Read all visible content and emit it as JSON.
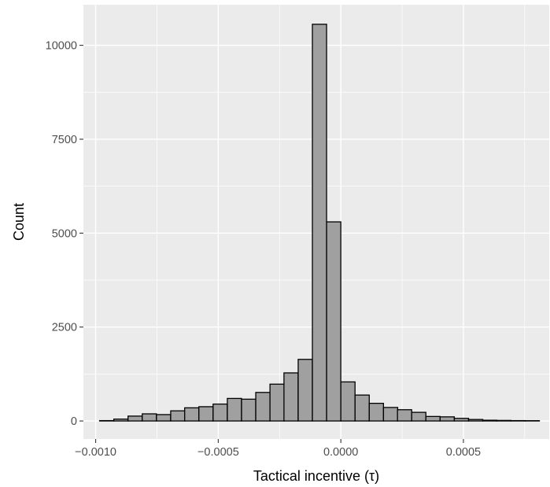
{
  "chart_data": {
    "type": "bar",
    "subtype": "histogram",
    "title": "",
    "xlabel": "Tactical incentive (τ)",
    "ylabel": "Count",
    "xlim": [
      -0.00105,
      0.00085
    ],
    "ylim": [
      -480,
      11080
    ],
    "x_ticks": [
      {
        "value": -0.001,
        "label": "−0.0010"
      },
      {
        "value": -0.0005,
        "label": "−0.0005"
      },
      {
        "value": 0.0,
        "label": "0.0000"
      },
      {
        "value": 0.0005,
        "label": "0.0005"
      }
    ],
    "y_ticks": [
      {
        "value": 0,
        "label": "0"
      },
      {
        "value": 2500,
        "label": "2500"
      },
      {
        "value": 5000,
        "label": "5000"
      },
      {
        "value": 7500,
        "label": "7500"
      },
      {
        "value": 10000,
        "label": "10000"
      }
    ],
    "bin_width": 5.79e-05,
    "bin_centers": [
      -0.000955,
      -0.000897,
      -0.000839,
      -0.000781,
      -0.000723,
      -0.000665,
      -0.000608,
      -0.00055,
      -0.000492,
      -0.000434,
      -0.000376,
      -0.000318,
      -0.00026,
      -0.000203,
      -0.000145,
      -8.7e-05,
      -2.9e-05,
      2.9e-05,
      8.7e-05,
      0.000145,
      0.000203,
      0.00026,
      0.000318,
      0.000376,
      0.000434,
      0.000492,
      0.00055,
      0.000608,
      0.000665,
      0.000723,
      0.000781
    ],
    "values": [
      10,
      50,
      130,
      190,
      170,
      270,
      350,
      380,
      450,
      600,
      580,
      760,
      980,
      1280,
      1640,
      10560,
      5300,
      1040,
      690,
      470,
      360,
      300,
      230,
      120,
      110,
      70,
      40,
      20,
      15,
      10,
      8
    ],
    "bar_fill": "#a0a0a0",
    "bar_stroke": "#000000",
    "panel_background": "#ebebeb",
    "gridline_color": "#ffffff",
    "grid": true,
    "legend": "none"
  }
}
